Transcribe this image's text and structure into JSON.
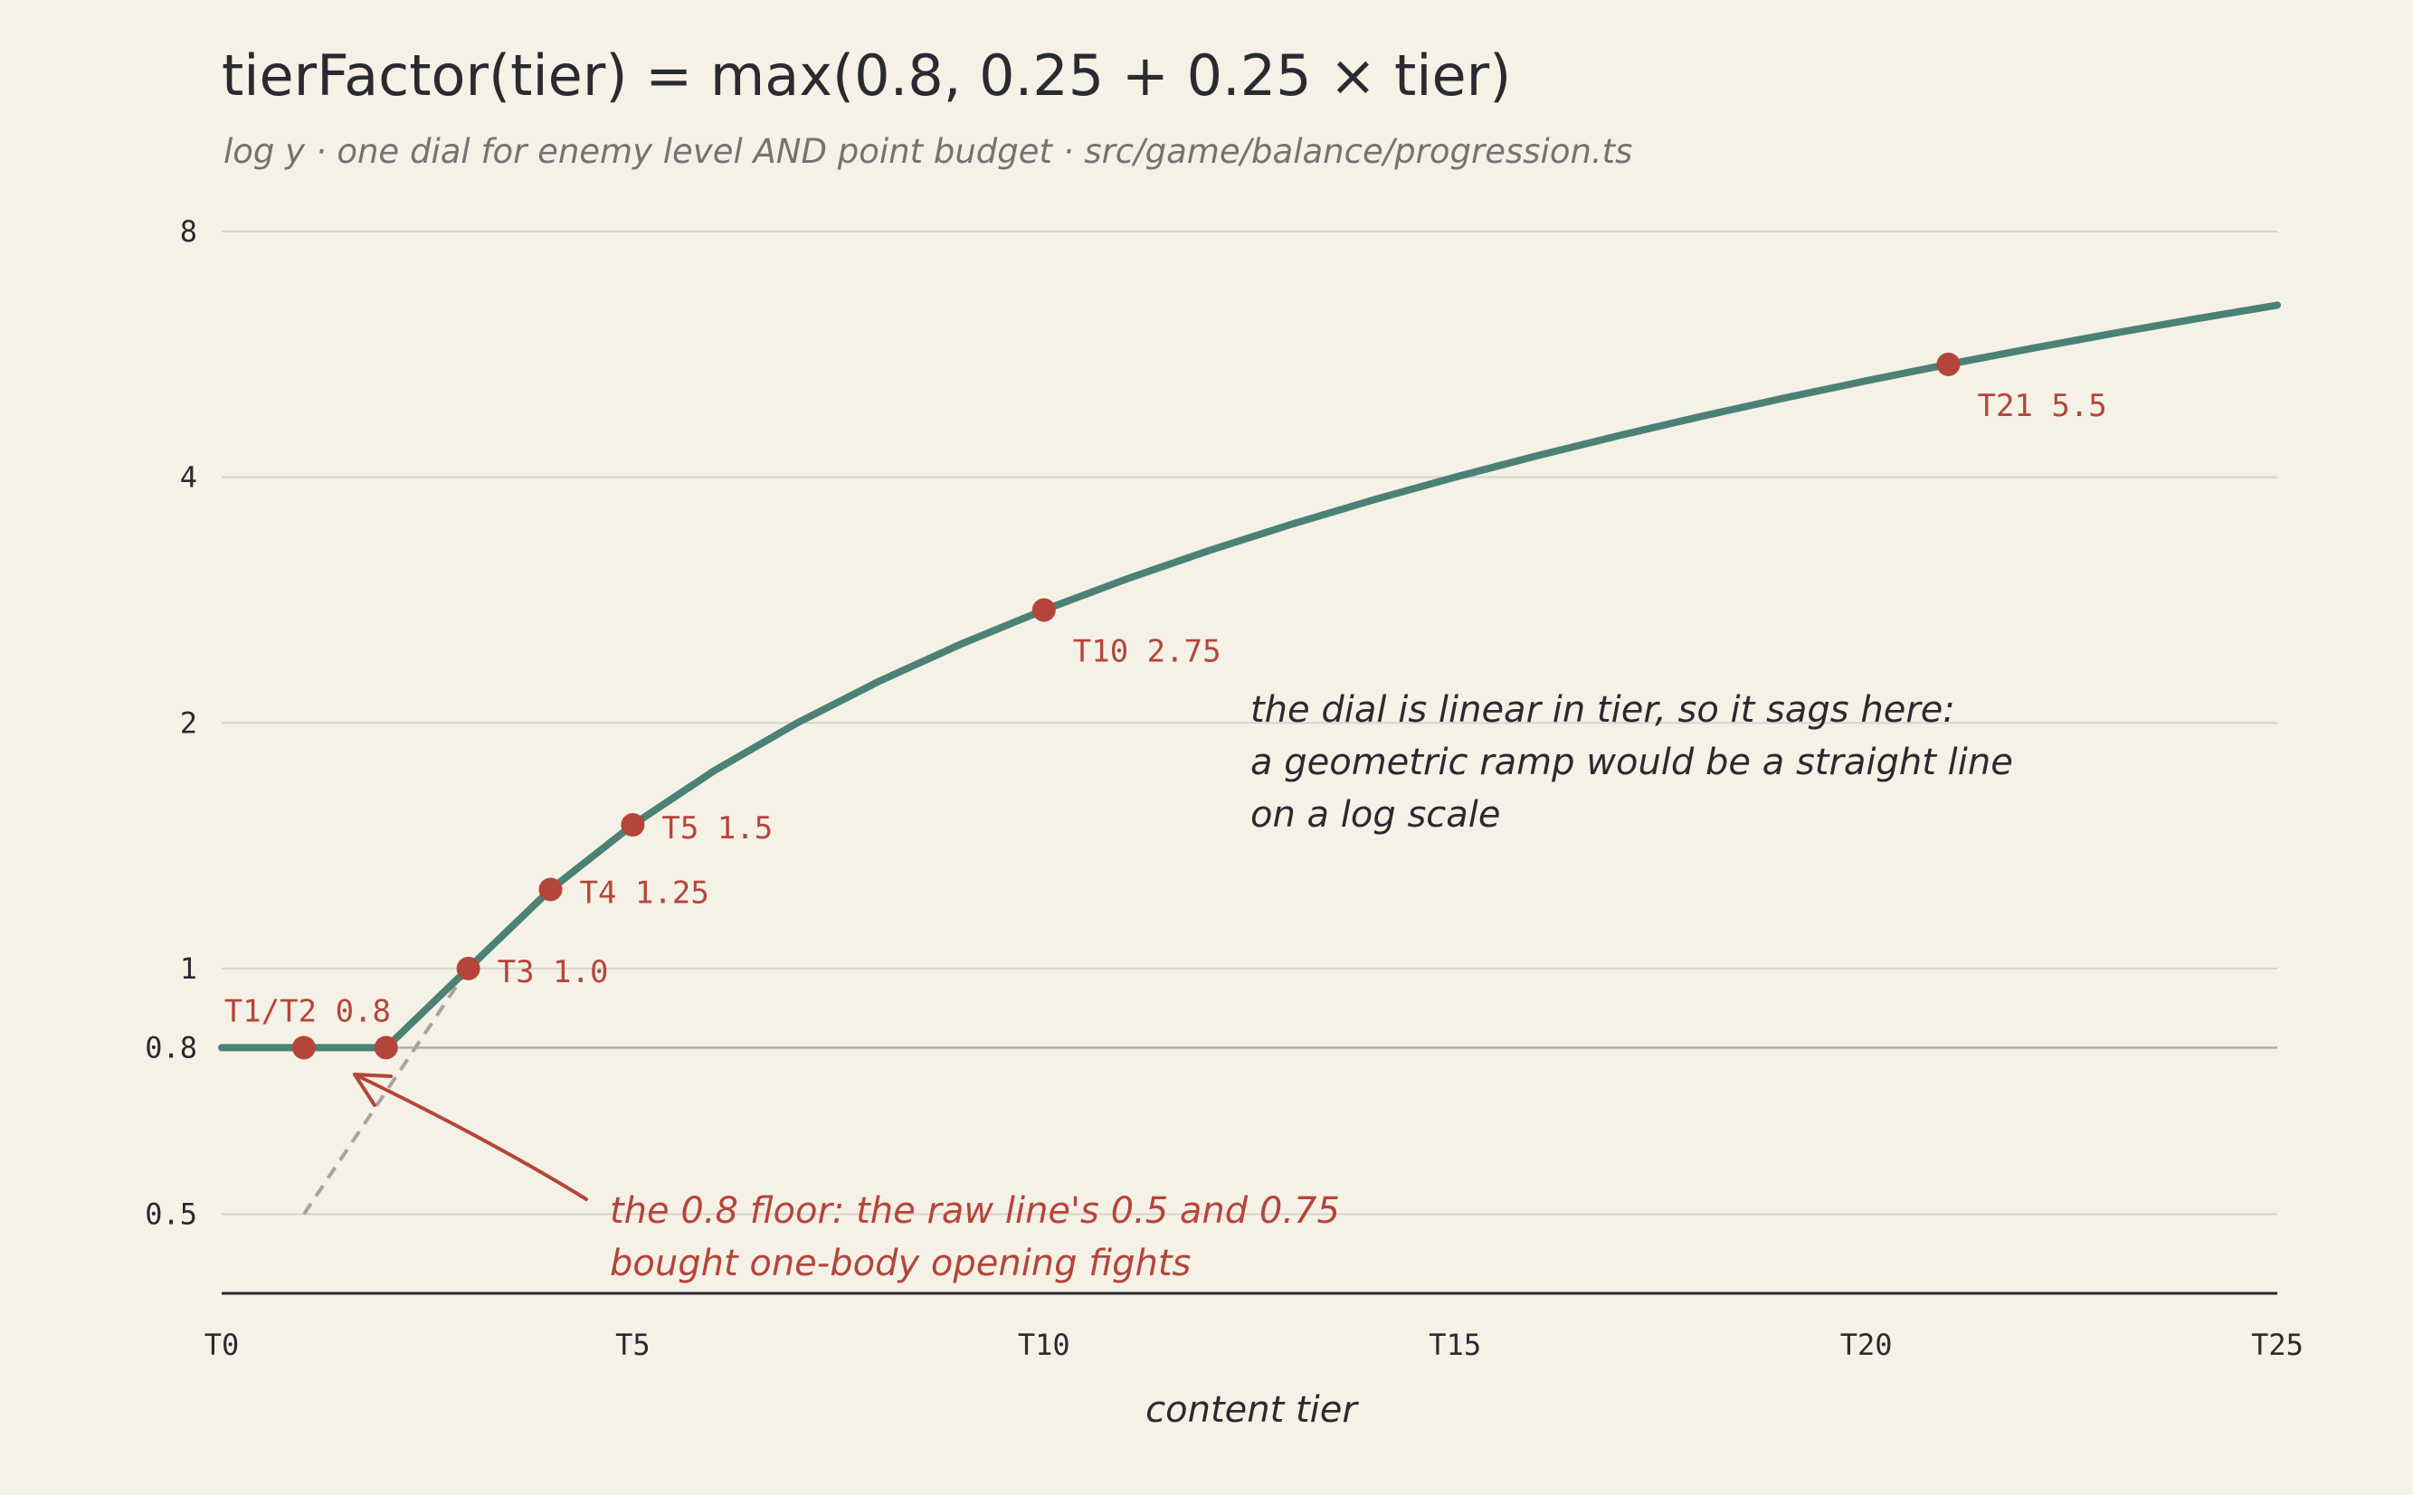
{
  "colors": {
    "background": "#f5f1e7",
    "line": "#4b8275",
    "point": "#b5453a",
    "grid": "#d8d4cb",
    "floor_line": "#b3ada3",
    "raw_dash": "#a8a39b",
    "axis": "#2a2a30"
  },
  "chart_data": {
    "type": "line",
    "title": "tierFactor(tier) = max(0.8, 0.25 + 0.25 × tier)",
    "subtitle": "log y · one dial for enemy level AND point budget · src/game/balance/progression.ts",
    "xlabel": "content tier",
    "ylabel": "",
    "yscale": "log",
    "xlim": [
      0,
      25
    ],
    "ylim": [
      0.4,
      8
    ],
    "grid": true,
    "x_ticks": [
      {
        "value": 0,
        "label": "T0"
      },
      {
        "value": 5,
        "label": "T5"
      },
      {
        "value": 10,
        "label": "T10"
      },
      {
        "value": 15,
        "label": "T15"
      },
      {
        "value": 20,
        "label": "T20"
      },
      {
        "value": 25,
        "label": "T25"
      }
    ],
    "y_ticks": [
      {
        "value": 8,
        "label": "8"
      },
      {
        "value": 4,
        "label": "4"
      },
      {
        "value": 2,
        "label": "2"
      },
      {
        "value": 1,
        "label": "1"
      },
      {
        "value": 0.8,
        "label": "0.8"
      },
      {
        "value": 0.5,
        "label": "0.5"
      }
    ],
    "series": [
      {
        "x": [
          0,
          1,
          2,
          3,
          4,
          5,
          6,
          7,
          8,
          9,
          10,
          11,
          12,
          13,
          14,
          15,
          16,
          17,
          18,
          19,
          20,
          21,
          22,
          23,
          24,
          25
        ],
        "y": [
          0.8,
          0.8,
          0.8,
          1.0,
          1.25,
          1.5,
          1.75,
          2.0,
          2.25,
          2.5,
          2.75,
          3.0,
          3.25,
          3.5,
          3.75,
          4.0,
          4.25,
          4.5,
          4.75,
          5.0,
          5.25,
          5.5,
          5.75,
          6.0,
          6.25,
          6.5
        ]
      }
    ],
    "raw_line": {
      "x": [
        1,
        3
      ],
      "y": [
        0.5,
        1.0
      ]
    },
    "highlighted_points": [
      {
        "x": 1,
        "y": 0.8
      },
      {
        "x": 2,
        "y": 0.8,
        "label": "T1/T2 0.8"
      },
      {
        "x": 3,
        "y": 1.0,
        "label": "T3 1.0"
      },
      {
        "x": 4,
        "y": 1.25,
        "label": "T4 1.25"
      },
      {
        "x": 5,
        "y": 1.5,
        "label": "T5 1.5"
      },
      {
        "x": 10,
        "y": 2.75,
        "label": "T10 2.75"
      },
      {
        "x": 21,
        "y": 5.5,
        "label": "T21 5.5"
      }
    ],
    "annotations": {
      "sag_note": [
        "the dial is linear in tier, so it sags here:",
        "a geometric ramp would be a straight line",
        "on a log scale"
      ],
      "floor_note": [
        "the 0.8 floor: the raw line's 0.5 and 0.75",
        "bought one-body opening fights"
      ]
    }
  }
}
